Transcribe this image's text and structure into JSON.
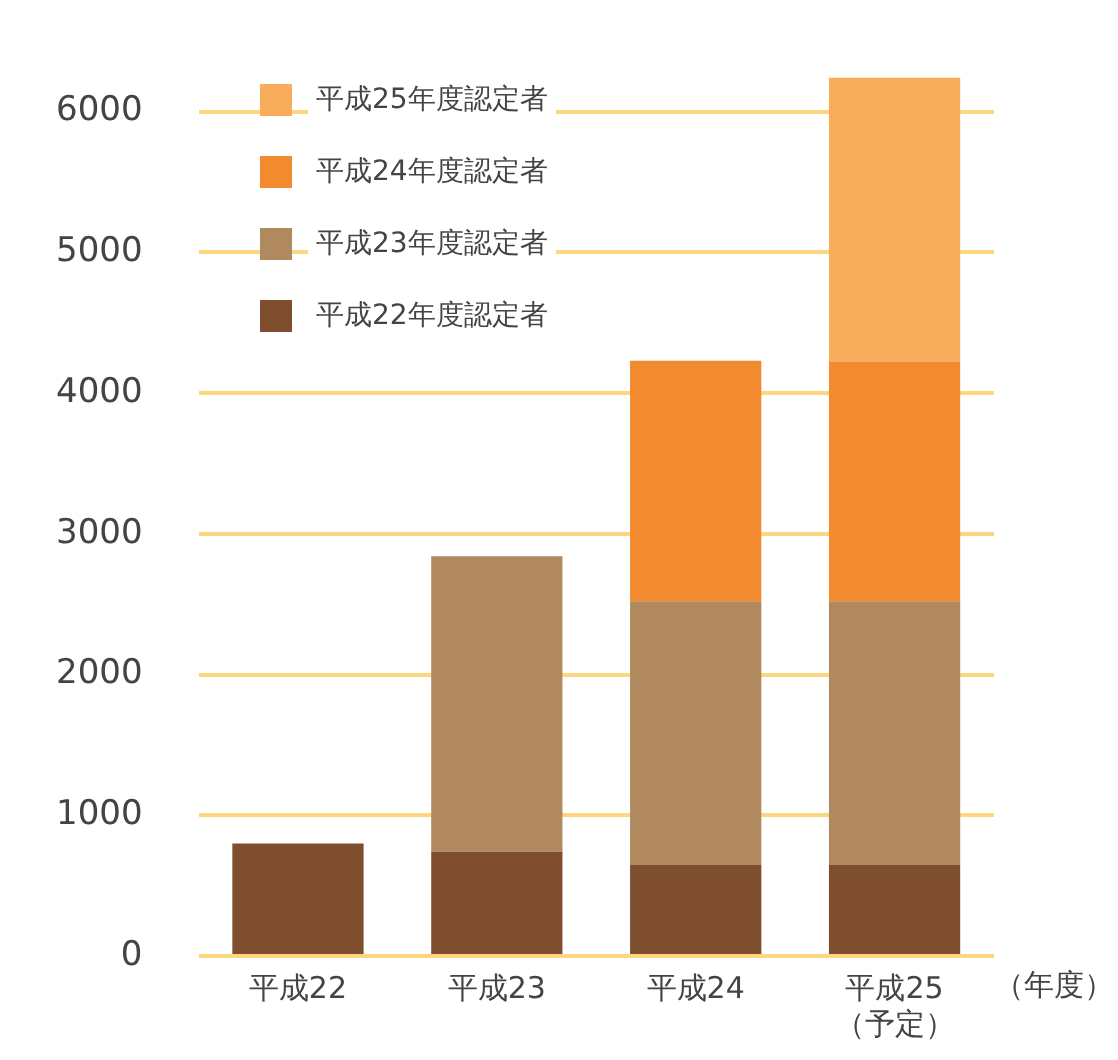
{
  "chart_data": {
    "type": "bar",
    "stacked": true,
    "xlabel": "（年度）",
    "categories": [
      "平成22",
      "平成23",
      "平成24",
      "平成25\n（予定）"
    ],
    "series": [
      {
        "name": "平成22年度認定者",
        "color": "#7e4e2f",
        "values": [
          800,
          740,
          650,
          650
        ]
      },
      {
        "name": "平成23年度認定者",
        "color": "#b08a5e",
        "values": [
          null,
          2100,
          1870,
          1870
        ]
      },
      {
        "name": "平成24年度認定者",
        "color": "#f28a30",
        "values": [
          null,
          null,
          1710,
          1700
        ]
      },
      {
        "name": "平成25年度認定者",
        "color": "#f8ad5c",
        "values": [
          null,
          null,
          null,
          2020
        ]
      }
    ],
    "ylim": [
      0,
      6250
    ],
    "yticks": [
      0,
      1000,
      2000,
      3000,
      4000,
      5000,
      6000
    ],
    "grid": "y",
    "legend": "top left"
  }
}
